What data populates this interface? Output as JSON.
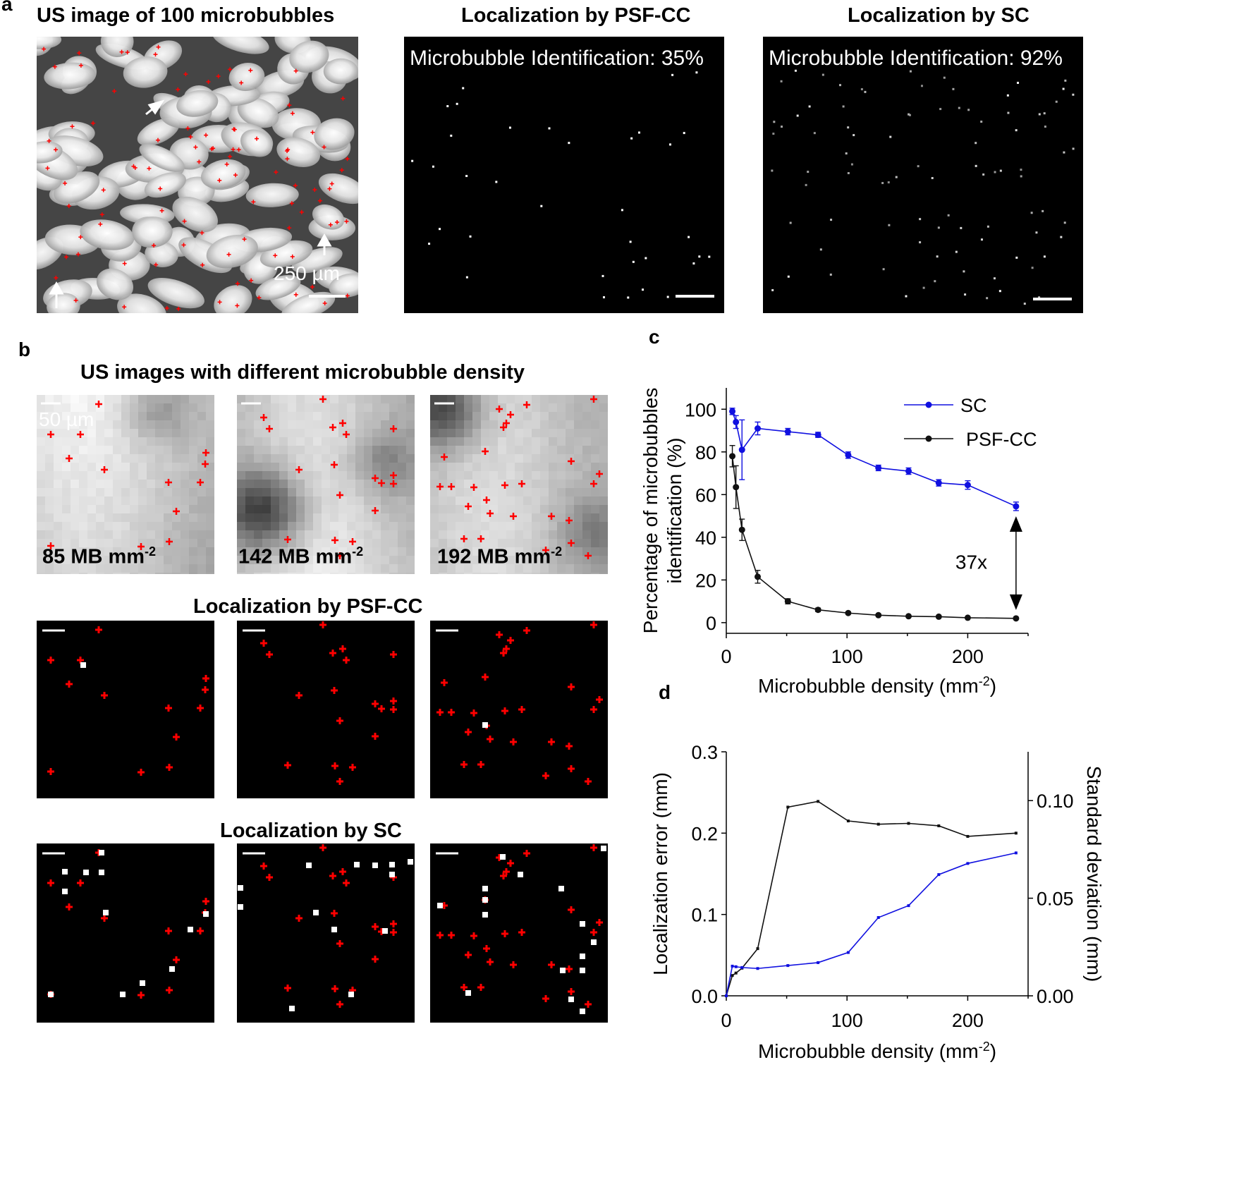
{
  "panel_labels": {
    "a": "a",
    "b": "b",
    "c": "c",
    "d": "d"
  },
  "panel_a": {
    "titles": [
      "US image of 100 microbubbles",
      "Localization by PSF-CC",
      "Localization by SC"
    ],
    "identification": [
      "Microbubble Identification: 35%",
      "Microbubble Identification: 92%"
    ],
    "scale_bar_label": "250 µm"
  },
  "panel_b": {
    "title": "US images with different microbubble density",
    "row2_title": "Localization by PSF-CC",
    "row3_title": "Localization by SC",
    "scale_bar_label": "50 µm",
    "densities": [
      {
        "value": "85 MB mm",
        "exp": "-2"
      },
      {
        "value": "142 MB mm",
        "exp": "-2"
      },
      {
        "value": "192 MB mm",
        "exp": "-2"
      }
    ]
  },
  "colors": {
    "sc": "#1010e0",
    "psf": "#111111",
    "marker": "#ff0000",
    "annotation": "#000000"
  },
  "chart_data": [
    {
      "type": "line",
      "id": "c",
      "xlabel": "Microbubble density (mm",
      "xlabel_exp": "-2",
      "xlabel_close": ")",
      "ylabel_line1": "Percentage of microbubbles",
      "ylabel_line2": "identification (%)",
      "xlim": [
        0,
        250
      ],
      "ylim": [
        -5,
        110
      ],
      "xticks": [
        0,
        100,
        200
      ],
      "yticks": [
        0,
        20,
        40,
        60,
        80,
        100
      ],
      "legend": "top-right",
      "annotation": "37x",
      "series": [
        {
          "name": "SC",
          "x": [
            5,
            8,
            13,
            26,
            51,
            76,
            101,
            126,
            151,
            176,
            200,
            240
          ],
          "y": [
            99,
            94,
            81,
            91,
            89.5,
            88,
            78.5,
            72.5,
            71,
            65.5,
            64.5,
            54.5
          ],
          "err": [
            1.5,
            3,
            14,
            3,
            1.5,
            1.2,
            1.5,
            1.3,
            1.5,
            1.5,
            2,
            2
          ]
        },
        {
          "name": "PSF-CC",
          "x": [
            5,
            8,
            13,
            26,
            51,
            76,
            101,
            126,
            151,
            176,
            200,
            240
          ],
          "y": [
            78,
            63.5,
            43.5,
            21.5,
            10,
            6,
            4.5,
            3.5,
            3,
            2.8,
            2.3,
            2
          ],
          "err": [
            5,
            10,
            5,
            3,
            1.2,
            0.8,
            0.5,
            0.4,
            0.4,
            0.4,
            0.3,
            0.3
          ]
        }
      ]
    },
    {
      "type": "line",
      "id": "d",
      "xlabel": "Microbubble density (mm",
      "xlabel_exp": "-2",
      "xlabel_close": ")",
      "ylabel_left": "Localization error (mm)",
      "ylabel_right": "Standard deviation (mm)",
      "xlim": [
        0,
        250
      ],
      "ylim_left": [
        0,
        0.3
      ],
      "ylim_right": [
        0,
        0.125
      ],
      "xticks": [
        0,
        100,
        200
      ],
      "yticks_left": [
        0.0,
        0.1,
        0.2,
        0.3
      ],
      "yticks_right": [
        0.0,
        0.05,
        0.1
      ],
      "series": [
        {
          "name": "Localization error",
          "axis": "left",
          "color": "#111111",
          "x": [
            0,
            5,
            8,
            13,
            26,
            51,
            76,
            101,
            126,
            151,
            176,
            200,
            240
          ],
          "y": [
            0.0,
            0.025,
            0.028,
            0.034,
            0.058,
            0.232,
            0.239,
            0.215,
            0.211,
            0.212,
            0.209,
            0.196,
            0.2
          ]
        },
        {
          "name": "Standard deviation",
          "axis": "right",
          "color": "#1010e0",
          "x": [
            0,
            5,
            8,
            13,
            26,
            51,
            76,
            101,
            126,
            151,
            176,
            200,
            240
          ],
          "y": [
            0.0,
            0.0152,
            0.0149,
            0.0145,
            0.014,
            0.0155,
            0.017,
            0.0222,
            0.0401,
            0.0462,
            0.0621,
            0.0678,
            0.0732
          ]
        }
      ]
    }
  ]
}
